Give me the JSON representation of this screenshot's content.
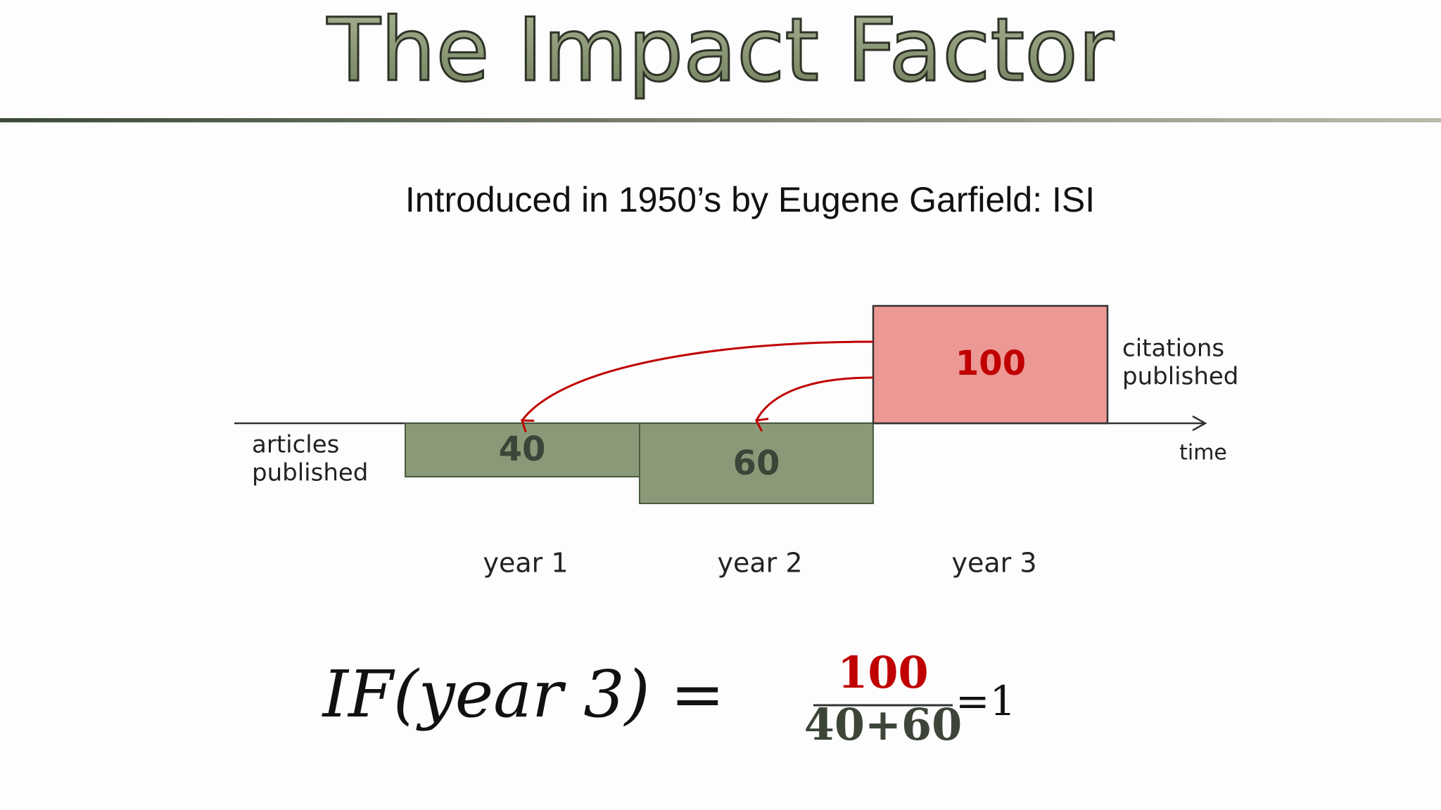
{
  "header": {
    "title": "The Impact Factor"
  },
  "subtitle": "Introduced in 1950’s by Eugene Garfield: ISI",
  "diagram": {
    "articles_label": [
      "articles",
      "published"
    ],
    "citations_label": [
      "citations",
      "published"
    ],
    "axis_label": "time",
    "boxes": [
      {
        "label": "40",
        "year": "year 1"
      },
      {
        "label": "60",
        "year": "year 2"
      },
      {
        "label": "100",
        "year": "year 3"
      }
    ]
  },
  "formula": {
    "lhs": "IF(year 3) =",
    "numerator": "100",
    "denominator": "40+60",
    "result": "=1"
  }
}
